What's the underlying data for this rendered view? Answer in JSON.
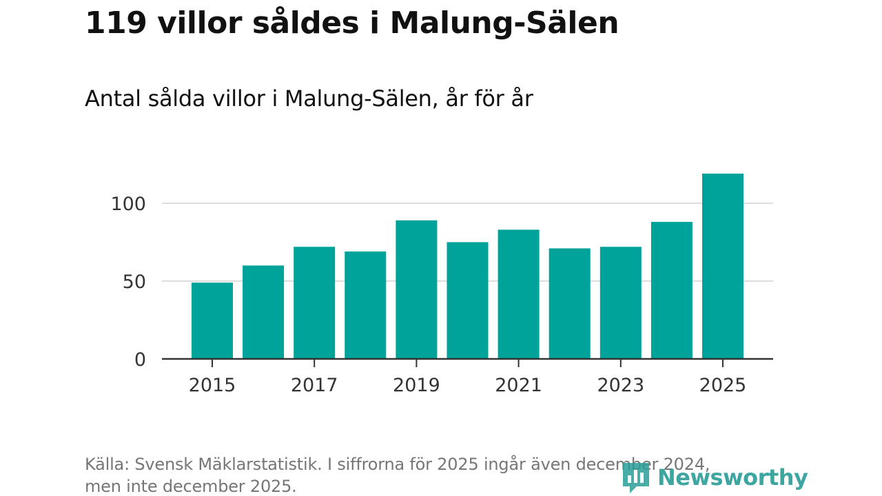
{
  "header": {
    "title": "119 villor såldes i Malung-Sälen",
    "subtitle": "Antal sålda villor i Malung-Sälen, år för år"
  },
  "footer": {
    "source_line1": "Källa: Svensk Mäklarstatistik. I siffrorna för 2025 ingår även december 2024,",
    "source_line2": "men inte december 2025."
  },
  "brand": {
    "name": "Newsworthy",
    "icon": "newsworthy-logo-icon",
    "color": "#2a9d97"
  },
  "chart_data": {
    "type": "bar",
    "categories": [
      "2015",
      "2016",
      "2017",
      "2018",
      "2019",
      "2020",
      "2021",
      "2022",
      "2023",
      "2024",
      "2025"
    ],
    "values": [
      49,
      60,
      72,
      69,
      89,
      75,
      83,
      71,
      72,
      88,
      119
    ],
    "x_tick_labels": [
      "2015",
      "2017",
      "2019",
      "2021",
      "2023",
      "2025"
    ],
    "y_ticks": [
      0,
      50,
      100
    ],
    "ylim": [
      0,
      120
    ],
    "title": "119 villor såldes i Malung-Sälen",
    "subtitle": "Antal sålda villor i Malung-Sälen, år för år",
    "xlabel": "",
    "ylabel": "",
    "bar_color": "#00a39a",
    "grid": true
  }
}
